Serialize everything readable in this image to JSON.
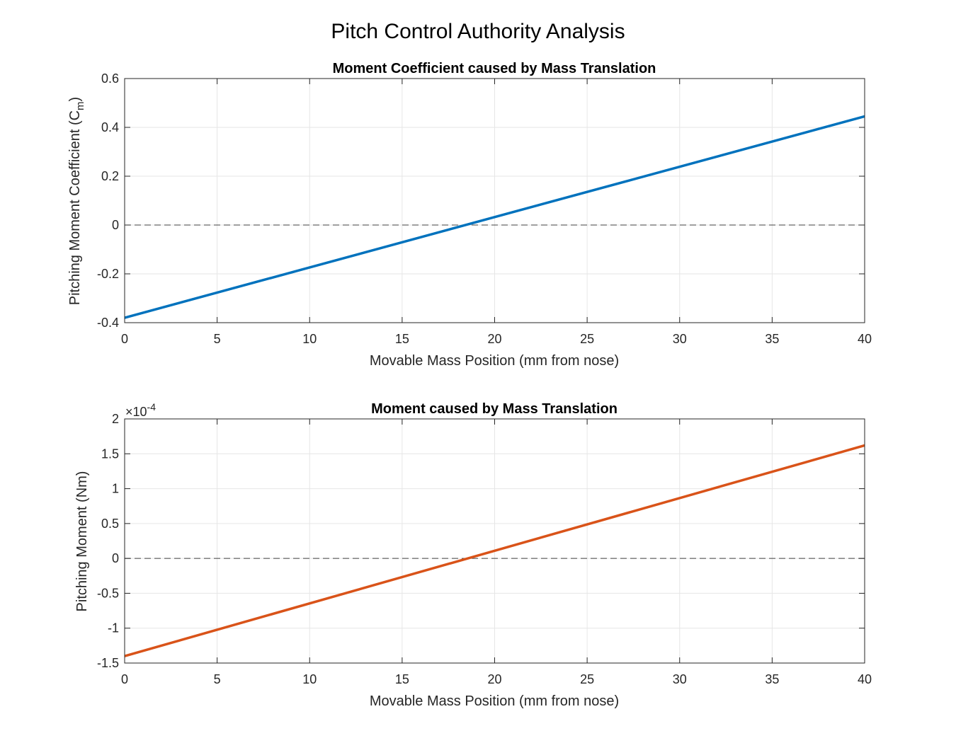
{
  "figure": {
    "title": "Pitch Control Authority Analysis"
  },
  "colors": {
    "series_1": "#0072BD",
    "series_2": "#D95319",
    "grid": "#e6e6e6",
    "zero_line": "#404040",
    "axis": "#262626"
  },
  "chart_data": [
    {
      "type": "line",
      "title": "Moment Coefficient caused by Mass Translation",
      "xlabel": "Movable Mass Position (mm from nose)",
      "ylabel_main": "Pitching Moment Coefficient (C",
      "ylabel_sub": "m",
      "ylabel_tail": ")",
      "xlim": [
        0,
        40
      ],
      "ylim": [
        -0.4,
        0.6
      ],
      "xticks": [
        0,
        5,
        10,
        15,
        20,
        25,
        30,
        35,
        40
      ],
      "xtick_labels": [
        "0",
        "5",
        "10",
        "15",
        "20",
        "25",
        "30",
        "35",
        "40"
      ],
      "yticks": [
        -0.4,
        -0.2,
        0,
        0.2,
        0.4,
        0.6
      ],
      "ytick_labels": [
        "-0.4",
        "-0.2",
        "0",
        "0.2",
        "0.4",
        "0.6"
      ],
      "grid": true,
      "reference_line": {
        "y": 0,
        "style": "dashed"
      },
      "series": [
        {
          "x": [
            0,
            40
          ],
          "y": [
            -0.38,
            0.445
          ],
          "color": "#0072BD"
        }
      ]
    },
    {
      "type": "line",
      "title": "Moment caused by Mass Translation",
      "xlabel": "Movable Mass Position (mm from nose)",
      "ylabel": "Pitching Moment (Nm)",
      "exponent_label": "×10",
      "exponent": "-4",
      "xlim": [
        0,
        40
      ],
      "ylim": [
        -1.5,
        2
      ],
      "xticks": [
        0,
        5,
        10,
        15,
        20,
        25,
        30,
        35,
        40
      ],
      "xtick_labels": [
        "0",
        "5",
        "10",
        "15",
        "20",
        "25",
        "30",
        "35",
        "40"
      ],
      "yticks": [
        -1.5,
        -1,
        -0.5,
        0,
        0.5,
        1,
        1.5,
        2
      ],
      "ytick_labels": [
        "-1.5",
        "-1",
        "-0.5",
        "0",
        "0.5",
        "1",
        "1.5",
        "2"
      ],
      "grid": true,
      "reference_line": {
        "y": 0,
        "style": "dashed"
      },
      "series": [
        {
          "x": [
            0,
            40
          ],
          "y": [
            -1.4,
            1.62
          ],
          "color": "#D95319"
        }
      ]
    }
  ]
}
